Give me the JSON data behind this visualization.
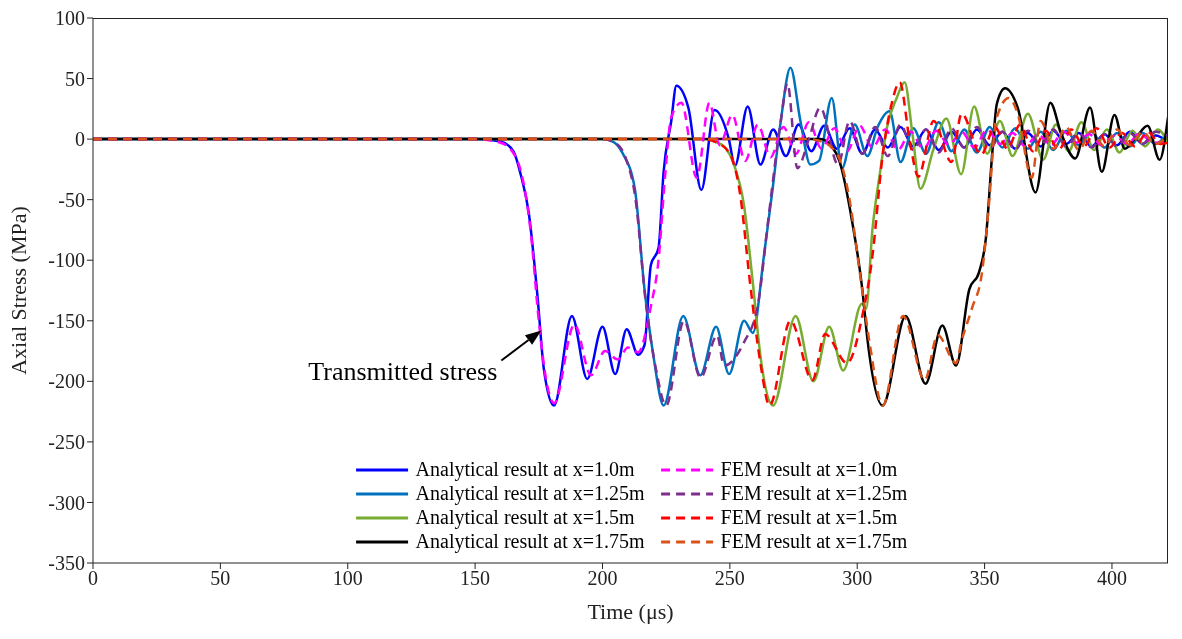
{
  "chart_data": {
    "type": "line",
    "xlabel": "Time (μs)",
    "ylabel": "Axial Stress (MPa)",
    "xlim": [
      0,
      422
    ],
    "xticks": [
      0,
      50,
      100,
      150,
      200,
      250,
      300,
      350,
      400
    ],
    "ylim": [
      -350,
      100
    ],
    "yticks": [
      -350,
      -300,
      -250,
      -200,
      -150,
      -100,
      -50,
      0,
      50,
      100
    ],
    "legend": "bottom",
    "annotations": [
      {
        "text": "Transmitted stress",
        "x": 176,
        "y": -158
      }
    ],
    "series": [
      {
        "name": "Analytical result at x=1.0m",
        "color": "#0000ff",
        "line_style": "solid",
        "x": [
          0,
          150,
          160,
          165,
          168,
          171,
          174.5,
          177,
          181,
          188,
          194,
          200,
          205,
          209.5,
          214,
          216.5,
          219,
          222,
          224,
          227,
          229,
          233.7,
          238.8,
          244,
          249.6,
          252,
          257,
          262,
          267,
          272,
          277,
          282,
          287,
          292,
          297,
          302,
          307,
          312,
          317,
          322,
          327,
          332,
          337,
          342,
          347,
          352,
          357,
          362,
          367,
          372,
          377,
          382,
          387,
          392,
          397,
          402,
          407,
          412,
          417,
          422
        ],
        "values": [
          0,
          0,
          -2,
          -10,
          -30,
          -60,
          -130,
          -190,
          -220,
          -146,
          -198,
          -155,
          -194,
          -157,
          -178,
          -170,
          -104,
          -90,
          -27,
          15,
          44,
          26,
          -42,
          24,
          0,
          -22,
          27,
          -21,
          8,
          -14,
          12,
          -10,
          11,
          -8,
          9,
          -12,
          8,
          -7,
          10,
          -6,
          8,
          -9,
          6,
          -7,
          8,
          -5,
          6,
          -8,
          5,
          -6,
          7,
          -4,
          5,
          -6,
          4,
          -5,
          6,
          -4,
          3,
          -2
        ]
      },
      {
        "name": "Analytical result at x=1.25m",
        "color": "#0072bd",
        "line_style": "solid",
        "x": [
          0,
          200,
          204,
          208,
          212.7,
          216.5,
          220,
          224,
          231.7,
          238.4,
          244.6,
          249.7,
          255.6,
          259,
          263.4,
          266.8,
          270,
          273.8,
          277.7,
          281.6,
          285,
          290,
          294,
          299,
          304,
          308,
          312.7,
          317,
          322,
          327,
          332,
          337,
          342,
          347,
          352,
          357,
          362,
          367,
          372,
          377,
          382,
          387,
          392,
          397,
          402,
          407,
          412,
          417,
          422
        ],
        "values": [
          0,
          0,
          -2,
          -12,
          -41,
          -124,
          -179,
          -220,
          -146,
          -195,
          -155,
          -194,
          -150,
          -160,
          -96,
          -41,
          15,
          59,
          15,
          -21,
          -18,
          34,
          -24,
          12,
          -14,
          10,
          23,
          -19,
          9,
          -12,
          14,
          -10,
          8,
          -11,
          10,
          -7,
          9,
          -8,
          6,
          -9,
          7,
          -5,
          6,
          -7,
          5,
          -6,
          5,
          -4,
          6
        ]
      },
      {
        "name": "Analytical result at x=1.5m",
        "color": "#77ac30",
        "line_style": "solid",
        "x": [
          0,
          240,
          244,
          247.7,
          251.6,
          255.5,
          259,
          262,
          267,
          275.8,
          282.8,
          289,
          294.5,
          301.8,
          303.5,
          306,
          309,
          311.6,
          315.5,
          318.6,
          321.7,
          324.8,
          330,
          335,
          340.8,
          345.9,
          351,
          356,
          361,
          367,
          373,
          378,
          383,
          388,
          393,
          398,
          403,
          408,
          413,
          418,
          422
        ],
        "values": [
          0,
          0,
          -2,
          -6,
          -21,
          -54,
          -118,
          -179,
          -220,
          -146,
          -200,
          -155,
          -191,
          -136,
          -140,
          -74,
          -27,
          9,
          34,
          47,
          4,
          -41,
          -8,
          17,
          -29,
          27,
          -12,
          15,
          -14,
          21,
          -17,
          12,
          -10,
          14,
          -9,
          8,
          -11,
          7,
          -6,
          8,
          -3
        ]
      },
      {
        "name": "Analytical result at x=1.75m",
        "color": "#000000",
        "line_style": "solid",
        "x": [
          0,
          280,
          285.5,
          290,
          293,
          298,
          302,
          304,
          310,
          319,
          326.8,
          333.4,
          338.8,
          344,
          347.8,
          350.5,
          353,
          354.8,
          358,
          363,
          370,
          375.8,
          380,
          385.6,
          391.4,
          396,
          401,
          405,
          410,
          414,
          418.7,
          422
        ],
        "values": [
          0,
          0,
          0,
          -6,
          -18,
          -68,
          -124,
          -165,
          -220,
          -146,
          -202,
          -154,
          -187,
          -124,
          -110,
          -82,
          -12,
          29,
          42,
          26,
          -44,
          30,
          5,
          -16,
          26,
          -27,
          20,
          -8,
          3,
          11,
          -17,
          18
        ]
      },
      {
        "name": "FEM result at x=1.0m",
        "color": "#ff00ff",
        "line_style": "dashed",
        "x": [
          0,
          150,
          160,
          166,
          172,
          175,
          178,
          181,
          189,
          195.5,
          201,
          206,
          210,
          214,
          219,
          222,
          224.7,
          227,
          231,
          237,
          242,
          246,
          251,
          256,
          261,
          266,
          271,
          276,
          281,
          286,
          291,
          296,
          301,
          306,
          311,
          316,
          321,
          326,
          331,
          336,
          341,
          346,
          351,
          356,
          361,
          366,
          371,
          376,
          381,
          386,
          391,
          396,
          401,
          406,
          411,
          416,
          422
        ],
        "values": [
          0,
          0,
          -3,
          -15,
          -80,
          -150,
          -200,
          -218,
          -153,
          -195,
          -175,
          -182,
          -172,
          -176,
          -138,
          -100,
          -27,
          18,
          30,
          -32,
          30,
          -5,
          20,
          -18,
          12,
          -15,
          10,
          -12,
          14,
          -8,
          9,
          -10,
          11,
          -7,
          8,
          -9,
          6,
          -8,
          7,
          -5,
          6,
          -7,
          8,
          -4,
          5,
          -6,
          4,
          -5,
          6,
          -3,
          4,
          -5,
          3,
          -4,
          5,
          -3,
          -2
        ]
      },
      {
        "name": "FEM result at x=1.25m",
        "color": "#7e2f8e",
        "line_style": "dashed",
        "x": [
          0,
          200,
          205,
          209,
          213,
          217,
          221,
          225,
          232,
          238.5,
          245,
          247.7,
          255.5,
          261,
          265,
          270,
          272.6,
          276.5,
          281,
          285.5,
          292.5,
          297,
          302,
          307,
          312,
          317,
          322,
          327,
          332,
          337,
          342,
          347,
          352,
          357,
          362,
          367,
          372,
          377,
          382,
          387,
          392,
          397,
          402,
          407,
          412,
          417,
          422
        ],
        "values": [
          0,
          0,
          -3,
          -15,
          -50,
          -135,
          -190,
          -220,
          -150,
          -197,
          -162,
          -187,
          -168,
          -137,
          -68,
          15,
          46,
          -24,
          0,
          26,
          -21,
          15,
          -12,
          10,
          -14,
          12,
          -9,
          8,
          -11,
          9,
          -7,
          10,
          -8,
          6,
          -9,
          7,
          -5,
          8,
          -6,
          5,
          -7,
          4,
          -6,
          5,
          -4,
          6,
          3
        ]
      },
      {
        "name": "FEM result at x=1.5m",
        "color": "#ff0000",
        "line_style": "dashed",
        "x": [
          0,
          240,
          245,
          250,
          254,
          258,
          262,
          265.6,
          273.8,
          282.4,
          287.4,
          296,
          302,
          306,
          310,
          313.5,
          316.7,
          320.5,
          324,
          330,
          337,
          341,
          348.6,
          354,
          359,
          364,
          369,
          374,
          379,
          384,
          389,
          394,
          399,
          404,
          409,
          414,
          419,
          422
        ],
        "values": [
          0,
          0,
          -3,
          -12,
          -45,
          -120,
          -185,
          -220,
          -150,
          -199,
          -161,
          -185,
          -146,
          -96,
          -13,
          29,
          47,
          0,
          -31,
          15,
          -19,
          21,
          -13,
          10,
          -8,
          12,
          -10,
          7,
          -9,
          8,
          -6,
          9,
          -7,
          5,
          -6,
          6,
          -4,
          -3
        ]
      },
      {
        "name": "FEM result at x=1.75m",
        "color": "#d95319",
        "line_style": "dashed",
        "x": [
          0,
          280,
          286,
          292,
          297,
          301,
          305,
          310,
          318,
          326.5,
          331.6,
          338.8,
          340.8,
          345,
          349,
          351.7,
          354.4,
          359.5,
          363,
          368.5,
          372,
          377,
          382,
          387,
          392,
          397,
          402,
          407,
          412,
          417,
          422
        ],
        "values": [
          0,
          0,
          -2,
          -12,
          -50,
          -110,
          -170,
          -220,
          -146,
          -199,
          -162,
          -185,
          -168,
          -140,
          -110,
          -54,
          15,
          34,
          21,
          -32,
          15,
          -8,
          10,
          -9,
          7,
          -6,
          8,
          -5,
          6,
          -4,
          3
        ]
      }
    ]
  }
}
